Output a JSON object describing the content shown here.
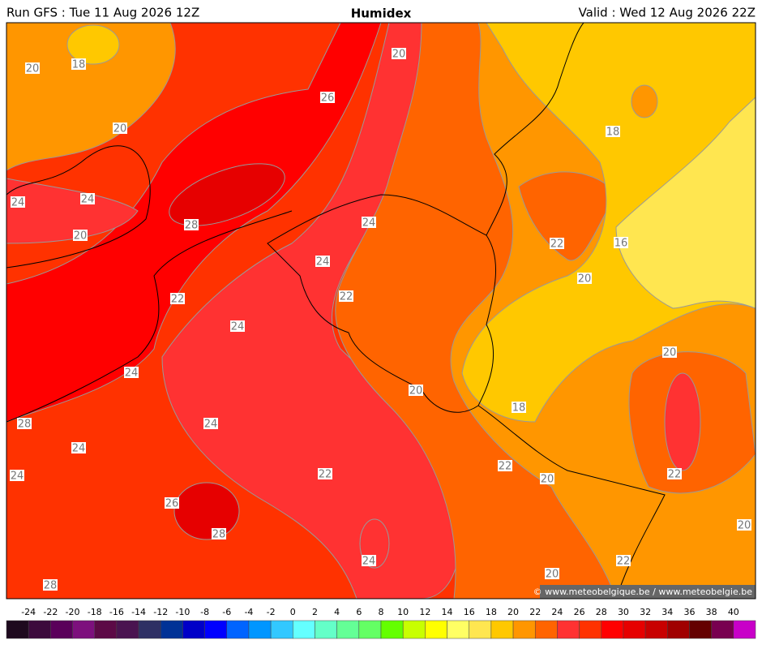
{
  "header": {
    "run": "Run GFS : Tue 11 Aug 2026 12Z",
    "title": "Humidex",
    "valid": "Valid : Wed 12 Aug 2026 22Z"
  },
  "map": {
    "contour_labels": [
      20,
      18,
      20,
      26,
      20,
      18,
      24,
      24,
      28,
      24,
      20,
      22,
      16,
      24,
      20,
      22,
      22,
      24,
      20,
      24,
      20,
      18,
      28,
      24,
      24,
      22,
      22,
      24,
      20,
      22,
      26,
      20,
      28,
      24,
      22,
      20,
      28
    ],
    "copyright": "© www.meteobelgique.be / www.meteobelgie.be"
  },
  "colorbar": {
    "ticks": [
      -24,
      -22,
      -20,
      -18,
      -16,
      -14,
      -12,
      -10,
      -8,
      -6,
      -4,
      -2,
      0,
      2,
      4,
      6,
      8,
      10,
      12,
      14,
      16,
      18,
      20,
      22,
      24,
      26,
      28,
      30,
      32,
      34,
      36,
      38,
      40
    ],
    "colors": [
      "#1e0a1e",
      "#3c0a3c",
      "#5a005a",
      "#7d107d",
      "#5c0a46",
      "#4a1450",
      "#2e3064",
      "#003296",
      "#0000c8",
      "#0000ff",
      "#0064ff",
      "#0096ff",
      "#32c8ff",
      "#64ffff",
      "#64ffc8",
      "#64ff96",
      "#64ff64",
      "#64ff00",
      "#c8ff00",
      "#ffff00",
      "#ffff64",
      "#ffe650",
      "#ffc800",
      "#ff9600",
      "#ff6400",
      "#ff3232",
      "#ff3200",
      "#ff0000",
      "#e60000",
      "#c80000",
      "#a00000",
      "#640000",
      "#780050",
      "#c800c8"
    ]
  }
}
